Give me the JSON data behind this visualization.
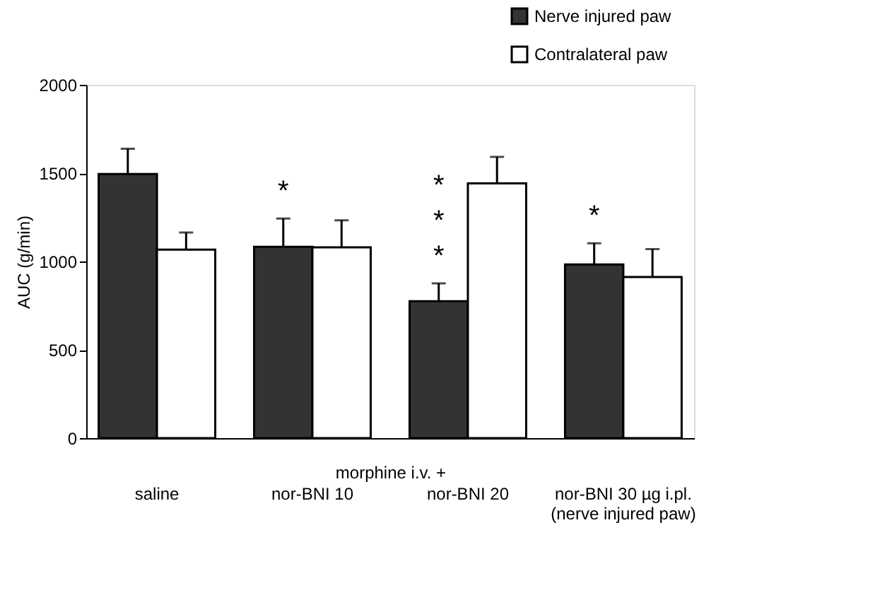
{
  "chart_data": {
    "type": "bar",
    "ylabel": "AUC (g/min)",
    "xlabel": "morphine i.v. +",
    "categories": [
      "saline",
      "nor-BNI 10",
      "nor-BNI 20",
      "nor-BNI 30 µg i.pl.\n(nerve injured paw)"
    ],
    "series": [
      {
        "name": "Nerve injured paw",
        "color": "#333333",
        "values": [
          1495,
          1083,
          775,
          983
        ],
        "errors": [
          [
            1495,
            1638
          ],
          [
            1083,
            1243
          ],
          [
            775,
            876
          ],
          [
            983,
            1103
          ]
        ]
      },
      {
        "name": "Contralateral paw",
        "color": "#ffffff",
        "values": [
          1067,
          1080,
          1442,
          912
        ],
        "errors": [
          [
            1067,
            1164
          ],
          [
            1080,
            1233
          ],
          [
            1442,
            1592
          ],
          [
            912,
            1070
          ]
        ]
      }
    ],
    "ylim": [
      0,
      2000
    ],
    "yticks": [
      0,
      500,
      1000,
      1500,
      2000
    ],
    "grid": false,
    "legend": "top right",
    "annotations": [
      {
        "text": "*",
        "x": "nor-BNI 10",
        "y": 1083
      },
      {
        "text": "***",
        "x": "nor-BNI 20",
        "y": 775
      },
      {
        "text": "*",
        "x": "nor-BNI 30 µg i.pl.\n(nerve injured paw)",
        "y": 983
      }
    ]
  }
}
